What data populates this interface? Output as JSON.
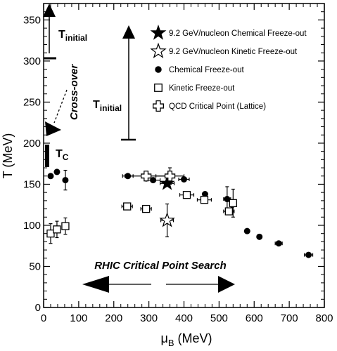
{
  "chart_data": {
    "type": "scatter",
    "xlabel": "μ",
    "xlabel_sub": "B",
    "xlabel_unit": " (MeV)",
    "ylabel": "T (MeV)",
    "xlim": [
      0,
      800
    ],
    "ylim": [
      0,
      370
    ],
    "xticks": [
      0,
      100,
      200,
      300,
      400,
      500,
      600,
      700,
      800
    ],
    "yticks": [
      0,
      50,
      100,
      150,
      200,
      250,
      300,
      350
    ],
    "grid": false,
    "legend_position": "top-right",
    "series": [
      {
        "name": "9.2 GeV/nucleon Chemical Freeze-out",
        "marker": "filled-star",
        "points": [
          {
            "x": 352,
            "y": 151,
            "xerr": 20,
            "yerr": 3
          }
        ]
      },
      {
        "name": "9.2 GeV/nucleon Kinetic Freeze-out",
        "marker": "open-star",
        "points": [
          {
            "x": 352,
            "y": 106,
            "xerr": 18,
            "yerr": 20
          }
        ]
      },
      {
        "name": "Chemical Freeze-out",
        "marker": "filled-circle",
        "points": [
          {
            "x": 20,
            "y": 160,
            "xerr": 0,
            "yerr": 0
          },
          {
            "x": 38,
            "y": 165,
            "xerr": 0,
            "yerr": 0
          },
          {
            "x": 62,
            "y": 155,
            "xerr": 5,
            "yerr": 12
          },
          {
            "x": 240,
            "y": 160,
            "xerr": 15,
            "yerr": 0
          },
          {
            "x": 312,
            "y": 155,
            "xerr": 20,
            "yerr": 0
          },
          {
            "x": 400,
            "y": 156,
            "xerr": 15,
            "yerr": 0
          },
          {
            "x": 460,
            "y": 138,
            "xerr": 0,
            "yerr": 0
          },
          {
            "x": 523,
            "y": 132,
            "xerr": 10,
            "yerr": 15
          },
          {
            "x": 538,
            "y": 125,
            "xerr": 0,
            "yerr": 0
          },
          {
            "x": 580,
            "y": 93,
            "xerr": 0,
            "yerr": 0
          },
          {
            "x": 615,
            "y": 86,
            "xerr": 0,
            "yerr": 0
          },
          {
            "x": 670,
            "y": 78,
            "xerr": 10,
            "yerr": 0
          },
          {
            "x": 755,
            "y": 64,
            "xerr": 12,
            "yerr": 0
          }
        ]
      },
      {
        "name": "Kinetic Freeze-out",
        "marker": "open-square",
        "points": [
          {
            "x": 20,
            "y": 90,
            "xerr": 0,
            "yerr": 12
          },
          {
            "x": 38,
            "y": 95,
            "xerr": 8,
            "yerr": 10
          },
          {
            "x": 62,
            "y": 99,
            "xerr": 8,
            "yerr": 10
          },
          {
            "x": 238,
            "y": 123,
            "xerr": 15,
            "yerr": 0
          },
          {
            "x": 292,
            "y": 120,
            "xerr": 15,
            "yerr": 0
          },
          {
            "x": 408,
            "y": 137,
            "xerr": 20,
            "yerr": 0
          },
          {
            "x": 458,
            "y": 131,
            "xerr": 20,
            "yerr": 0
          },
          {
            "x": 528,
            "y": 117,
            "xerr": 15,
            "yerr": 0
          },
          {
            "x": 540,
            "y": 127,
            "xerr": 10,
            "yerr": 17
          }
        ]
      },
      {
        "name": "QCD Critical Point (Lattice)",
        "marker": "open-cross",
        "points": [
          {
            "x": 292,
            "y": 160,
            "xerr": 60,
            "yerr": 0
          },
          {
            "x": 360,
            "y": 160,
            "xerr": 40,
            "yerr": 10
          }
        ]
      }
    ],
    "annotations": {
      "t_initial_left": {
        "label": "T",
        "sub": "initial"
      },
      "t_initial_right": {
        "label": "T",
        "sub": "initial"
      },
      "crossover": "Cross-over",
      "tc": {
        "label": "T",
        "sub": "C"
      },
      "rhic": "RHIC Critical Point Search"
    }
  }
}
